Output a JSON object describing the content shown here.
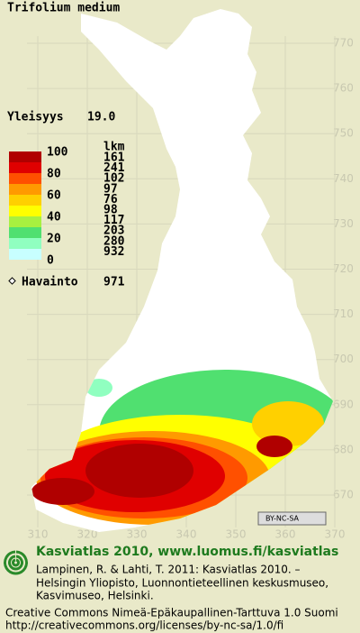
{
  "title": "Trifolium medium",
  "frequency": {
    "label": "Yleisyys",
    "value": "19.0"
  },
  "legend": {
    "class_labels": [
      100,
      80,
      60,
      40,
      20,
      0
    ],
    "colors": [
      "#b00000",
      "#e00000",
      "#ff5000",
      "#ff9a00",
      "#ffd000",
      "#ffff00",
      "#a8f040",
      "#50e070",
      "#90ffc0",
      "#c8ffff"
    ],
    "count_header": "lkm",
    "counts": [
      161,
      241,
      102,
      97,
      76,
      98,
      117,
      203,
      280,
      932
    ]
  },
  "observations": {
    "label": "Havainto",
    "value": 971
  },
  "grid": {
    "y_labels": [
      770,
      760,
      750,
      740,
      730,
      720,
      710,
      700,
      690,
      680,
      670
    ],
    "x_labels": [
      310,
      320,
      330,
      340,
      350,
      360,
      370
    ]
  },
  "license_badge": "BY-NC-SA",
  "footer": {
    "headline": "Kasviatlas 2010, www.luomus.fi/kasviatlas",
    "citation": [
      "Lampinen, R. & Lahti, T. 2011: Kasviatlas 2010. –",
      "Helsingin Yliopisto, Luonnontieteellinen keskusmuseo,",
      "Kasvimuseo, Helsinki."
    ],
    "license": [
      "Creative Commons Nimeä-Epäkaupallinen-Tarttuva 1.0 Suomi",
      "http://creativecommons.org/licenses/by-nc-sa/1.0/fi"
    ]
  }
}
